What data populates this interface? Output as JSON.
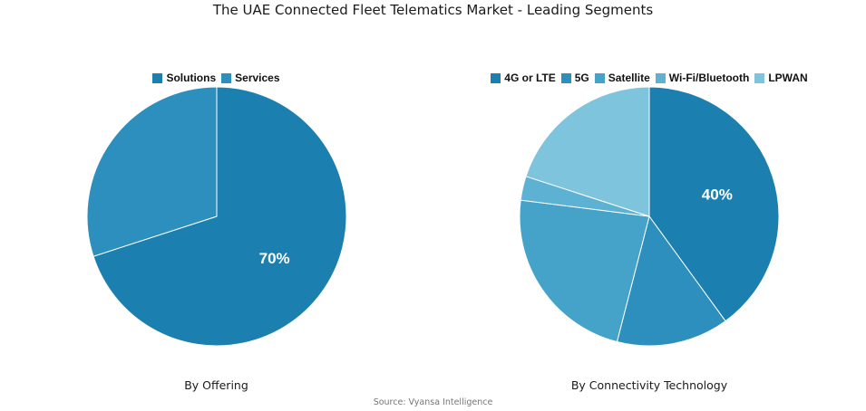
{
  "title": "The UAE Connected Fleet Telematics Market - Leading Segments",
  "source": "Source: Vyansa Intelligence",
  "chart_data": [
    {
      "type": "pie",
      "caption": "By Offering",
      "categories": [
        "Solutions",
        "Services"
      ],
      "values": [
        70,
        30
      ],
      "colors": [
        "#1b7fb0",
        "#2d8fbd"
      ],
      "labels": [
        "70%",
        ""
      ],
      "legend": "top"
    },
    {
      "type": "pie",
      "caption": "By Connectivity Technology",
      "categories": [
        "4G or LTE",
        "5G",
        "Satellite",
        "Wi-Fi/Bluetooth",
        "LPWAN"
      ],
      "values": [
        40,
        14,
        23,
        3,
        20
      ],
      "colors": [
        "#1b7fb0",
        "#2d8fbd",
        "#45a2c8",
        "#5db1d3",
        "#7ec4dc"
      ],
      "labels": [
        "40%",
        "",
        "",
        "",
        ""
      ],
      "legend": "top"
    }
  ]
}
